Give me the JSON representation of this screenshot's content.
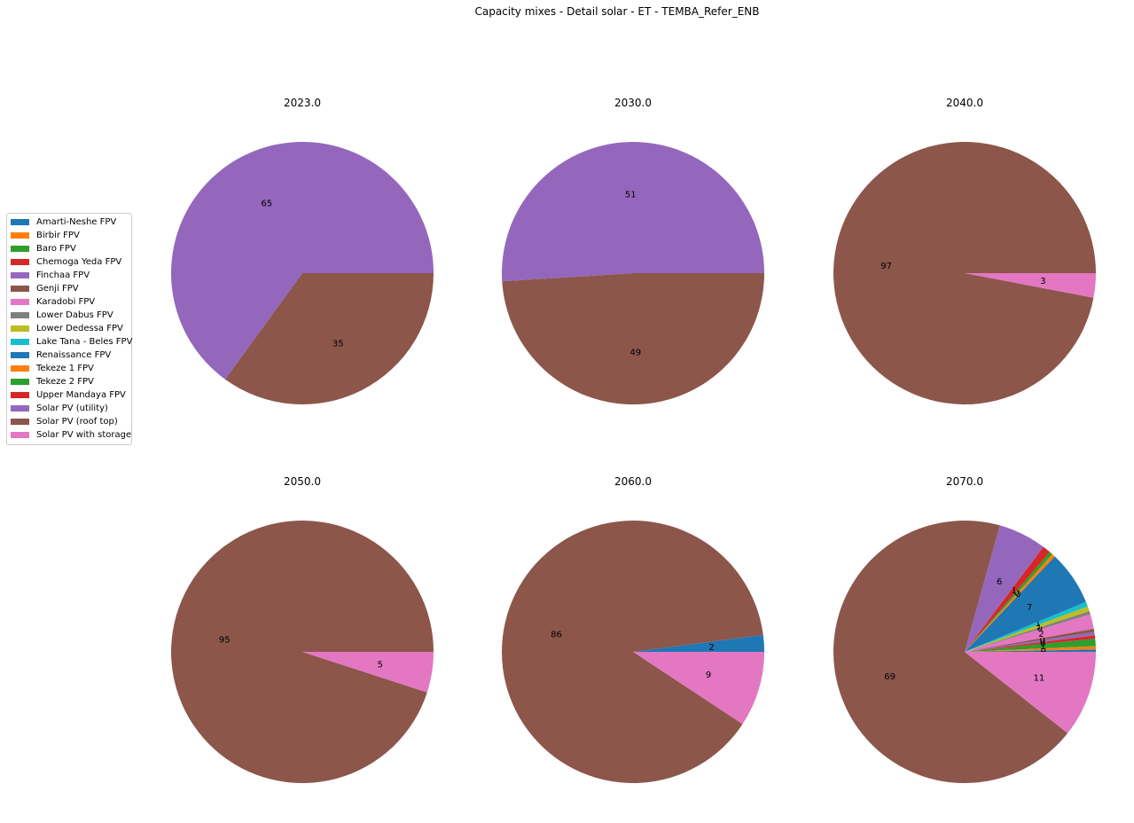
{
  "chart_data": {
    "type": "pie",
    "title": "Capacity mixes - Detail solar - ET - TEMBA_Refer_ENB",
    "legend_position": "left",
    "legend": [
      {
        "name": "Amarti-Neshe FPV",
        "color": "#1f77b4"
      },
      {
        "name": "Birbir FPV",
        "color": "#ff7f0e"
      },
      {
        "name": "Baro FPV",
        "color": "#2ca02c"
      },
      {
        "name": "Chemoga Yeda FPV",
        "color": "#d62728"
      },
      {
        "name": "Finchaa FPV",
        "color": "#9467bd"
      },
      {
        "name": "Genji FPV",
        "color": "#8c564b"
      },
      {
        "name": "Karadobi FPV",
        "color": "#e377c2"
      },
      {
        "name": "Lower Dabus FPV",
        "color": "#7f7f7f"
      },
      {
        "name": "Lower Dedessa FPV",
        "color": "#bcbd22"
      },
      {
        "name": "Lake Tana - Beles FPV",
        "color": "#17becf"
      },
      {
        "name": "Renaissance FPV",
        "color": "#1f77b4"
      },
      {
        "name": "Tekeze 1 FPV",
        "color": "#ff7f0e"
      },
      {
        "name": "Tekeze 2 FPV",
        "color": "#2ca02c"
      },
      {
        "name": "Upper Mandaya FPV",
        "color": "#d62728"
      },
      {
        "name": "Solar PV (utility)",
        "color": "#9467bd"
      },
      {
        "name": "Solar PV (roof top)",
        "color": "#8c564b"
      },
      {
        "name": "Solar PV with storage",
        "color": "#e377c2"
      }
    ],
    "panels": [
      {
        "title": "2023.0",
        "slices": [
          {
            "label": "0",
            "value": 0,
            "color": "#1f77b4"
          },
          {
            "label": "0",
            "value": 0,
            "color": "#ff7f0e"
          },
          {
            "label": "0",
            "value": 0,
            "color": "#2ca02c"
          },
          {
            "label": "65",
            "value": 65,
            "color": "#9467bd"
          },
          {
            "label": "35",
            "value": 35,
            "color": "#8c564b"
          }
        ]
      },
      {
        "title": "2030.0",
        "slices": [
          {
            "label": "0",
            "value": 0,
            "color": "#1f77b4"
          },
          {
            "label": "0",
            "value": 0,
            "color": "#ff7f0e"
          },
          {
            "label": "0",
            "value": 0,
            "color": "#2ca02c"
          },
          {
            "label": "51",
            "value": 51,
            "color": "#9467bd"
          },
          {
            "label": "49",
            "value": 49,
            "color": "#8c564b"
          }
        ]
      },
      {
        "title": "2040.0",
        "slices": [
          {
            "label": "0",
            "value": 0,
            "color": "#1f77b4"
          },
          {
            "label": "0",
            "value": 0,
            "color": "#ff7f0e"
          },
          {
            "label": "0",
            "value": 0,
            "color": "#2ca02c"
          },
          {
            "label": "97",
            "value": 97,
            "color": "#8c564b"
          },
          {
            "label": "3",
            "value": 3,
            "color": "#e377c2"
          }
        ]
      },
      {
        "title": "2050.0",
        "slices": [
          {
            "label": "0",
            "value": 0,
            "color": "#1f77b4"
          },
          {
            "label": "0",
            "value": 0,
            "color": "#ff7f0e"
          },
          {
            "label": "0",
            "value": 0,
            "color": "#2ca02c"
          },
          {
            "label": "95",
            "value": 95,
            "color": "#8c564b"
          },
          {
            "label": "5",
            "value": 5,
            "color": "#e377c2"
          }
        ]
      },
      {
        "title": "2060.0",
        "slices": [
          {
            "label": "0",
            "value": 0,
            "color": "#1f77b4"
          },
          {
            "label": "0",
            "value": 0,
            "color": "#ff7f0e"
          },
          {
            "label": "0",
            "value": 0,
            "color": "#2ca02c"
          },
          {
            "label": "0",
            "value": 0,
            "color": "#d62728"
          },
          {
            "label": "0",
            "value": 0,
            "color": "#9467bd"
          },
          {
            "label": "0",
            "value": 0,
            "color": "#7f7f7f"
          },
          {
            "label": "0",
            "value": 0,
            "color": "#bcbd22"
          },
          {
            "label": "0",
            "value": 0,
            "color": "#17becf"
          },
          {
            "label": "2",
            "value": 2,
            "color": "#1f77b4"
          },
          {
            "label": "86",
            "value": 86,
            "color": "#8c564b"
          },
          {
            "label": "9",
            "value": 9,
            "color": "#e377c2"
          }
        ]
      },
      {
        "title": "2070.0",
        "slices": [
          {
            "label": "0",
            "value": 0.3,
            "color": "#1f77b4"
          },
          {
            "label": "0",
            "value": 0.4,
            "color": "#ff7f0e"
          },
          {
            "label": "1",
            "value": 0.9,
            "color": "#2ca02c"
          },
          {
            "label": "0",
            "value": 0.4,
            "color": "#d62728"
          },
          {
            "label": "0",
            "value": 0.4,
            "color": "#9467bd"
          },
          {
            "label": "0",
            "value": 0.4,
            "color": "#8c564b"
          },
          {
            "label": "2",
            "value": 1.8,
            "color": "#e377c2"
          },
          {
            "label": "0",
            "value": 0.4,
            "color": "#7f7f7f"
          },
          {
            "label": "1",
            "value": 0.6,
            "color": "#bcbd22"
          },
          {
            "label": "1",
            "value": 0.6,
            "color": "#17becf"
          },
          {
            "label": "7",
            "value": 6.7,
            "color": "#1f77b4"
          },
          {
            "label": "0",
            "value": 0.4,
            "color": "#ff7f0e"
          },
          {
            "label": "0",
            "value": 0.4,
            "color": "#2ca02c"
          },
          {
            "label": "1",
            "value": 1.0,
            "color": "#d62728"
          },
          {
            "label": "6",
            "value": 5.9,
            "color": "#9467bd"
          },
          {
            "label": "69",
            "value": 68.4,
            "color": "#8c564b"
          },
          {
            "label": "11",
            "value": 10.6,
            "color": "#e377c2"
          }
        ]
      }
    ]
  }
}
